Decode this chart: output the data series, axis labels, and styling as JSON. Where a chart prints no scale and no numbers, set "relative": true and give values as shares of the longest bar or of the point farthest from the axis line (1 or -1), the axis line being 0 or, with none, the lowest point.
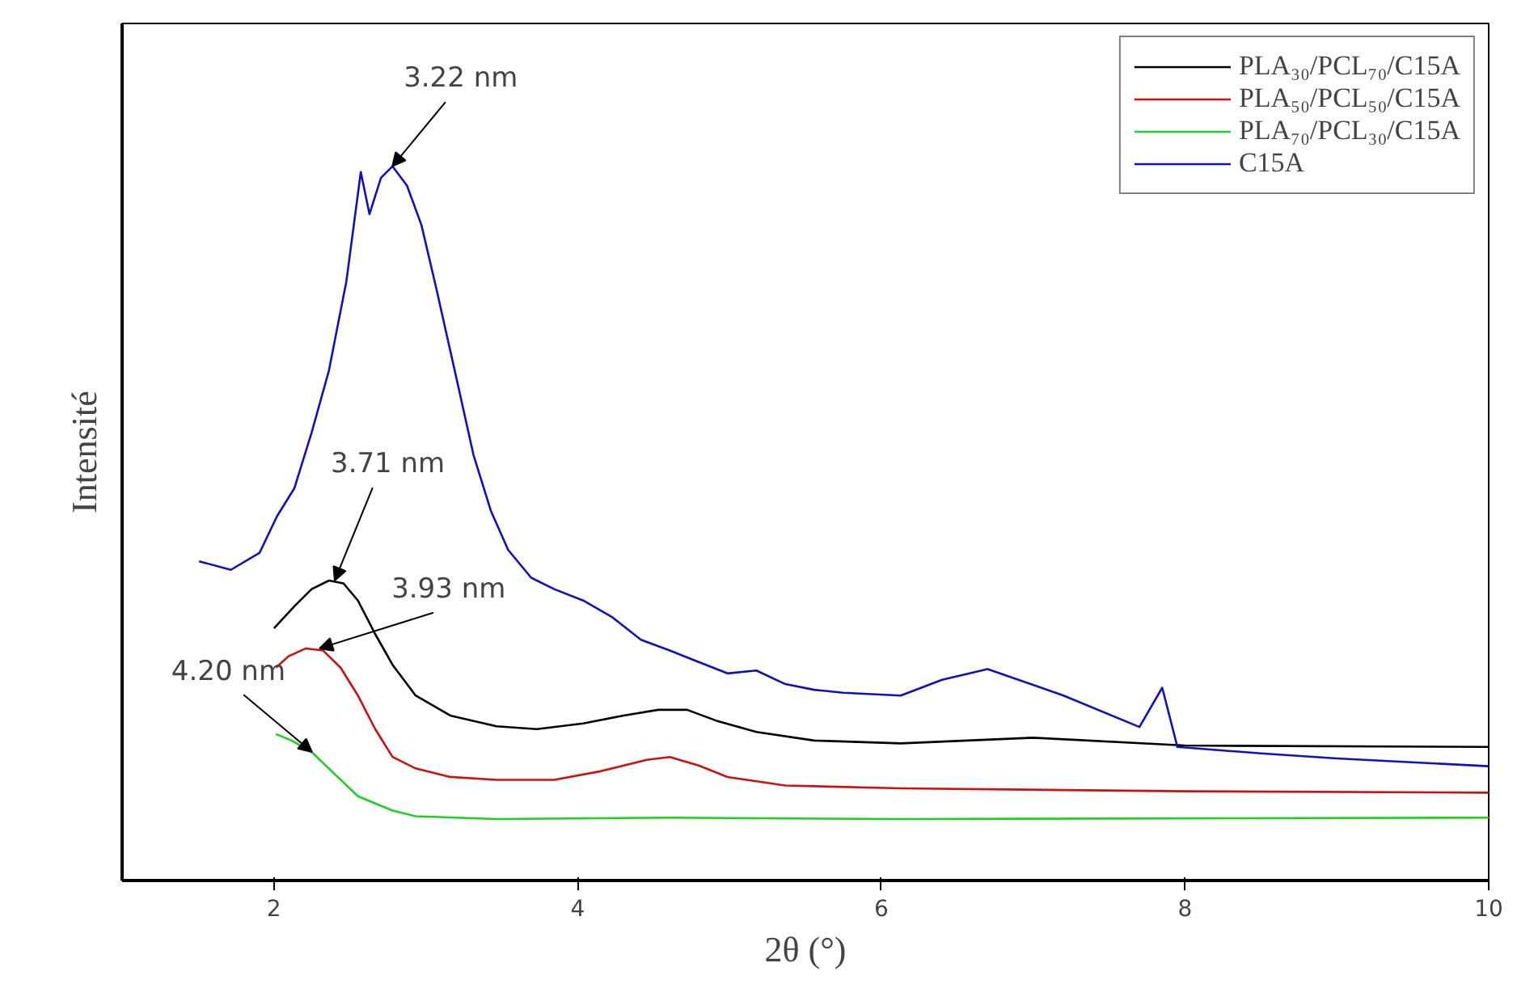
{
  "chart_data": {
    "type": "line",
    "relative": true,
    "xlabel": "2θ (°)",
    "ylabel": "Intensité",
    "xlim": [
      1,
      10
    ],
    "xticks": [
      2,
      4,
      6,
      8,
      10
    ],
    "legend": "top right",
    "grid": false,
    "marker": "none",
    "line_style": "solid",
    "series": [
      {
        "name": "PLA₃₀/PCL₇₀/C15A",
        "color": "#000000",
        "x": [
          2.0,
          2.134,
          2.248,
          2.362,
          2.458,
          2.553,
          2.667,
          2.781,
          2.933,
          3.161,
          3.466,
          3.732,
          4.036,
          4.302,
          4.531,
          4.721,
          4.911,
          5.177,
          5.558,
          6.128,
          7.0,
          8.0,
          10.0
        ],
        "values": [
          0.353,
          0.384,
          0.408,
          0.42,
          0.416,
          0.392,
          0.345,
          0.302,
          0.259,
          0.231,
          0.216,
          0.212,
          0.22,
          0.231,
          0.239,
          0.239,
          0.224,
          0.208,
          0.196,
          0.192,
          0.2,
          0.189,
          0.187
        ]
      },
      {
        "name": "PLA₅₀/PCL₅₀/C15A",
        "color": "#d01010",
        "x": [
          2.013,
          2.096,
          2.21,
          2.324,
          2.439,
          2.553,
          2.667,
          2.781,
          2.933,
          3.161,
          3.466,
          3.846,
          4.151,
          4.455,
          4.607,
          4.797,
          4.987,
          5.368,
          6.128,
          8.0,
          10.0
        ],
        "values": [
          0.298,
          0.314,
          0.325,
          0.322,
          0.298,
          0.259,
          0.212,
          0.173,
          0.157,
          0.145,
          0.141,
          0.141,
          0.153,
          0.169,
          0.173,
          0.161,
          0.145,
          0.133,
          0.129,
          0.125,
          0.123
        ]
      },
      {
        "name": "PLA₇₀/PCL₃₀/C15A",
        "color": "#20d020",
        "x": [
          2.013,
          2.116,
          2.248,
          2.4,
          2.553,
          2.781,
          2.933,
          3.466,
          4.607,
          6.128,
          10.0
        ],
        "values": [
          0.205,
          0.196,
          0.18,
          0.149,
          0.118,
          0.098,
          0.09,
          0.086,
          0.088,
          0.086,
          0.088
        ]
      },
      {
        "name": "C15A",
        "color": "#1010c0",
        "x": [
          1.507,
          1.716,
          1.906,
          2.02,
          2.134,
          2.248,
          2.362,
          2.477,
          2.572,
          2.629,
          2.705,
          2.781,
          2.876,
          2.971,
          3.066,
          3.199,
          3.314,
          3.428,
          3.542,
          3.694,
          3.846,
          4.037,
          4.226,
          4.417,
          4.607,
          4.797,
          4.987,
          5.177,
          5.368,
          5.558,
          5.748,
          6.128,
          6.4,
          6.7,
          7.2,
          7.7,
          7.85,
          7.95,
          8.5,
          9.0,
          10.0
        ],
        "values": [
          0.447,
          0.435,
          0.459,
          0.51,
          0.549,
          0.627,
          0.714,
          0.839,
          0.992,
          0.933,
          0.984,
          1.0,
          0.973,
          0.918,
          0.832,
          0.706,
          0.596,
          0.518,
          0.463,
          0.424,
          0.408,
          0.392,
          0.369,
          0.337,
          0.322,
          0.306,
          0.29,
          0.294,
          0.275,
          0.267,
          0.263,
          0.259,
          0.281,
          0.296,
          0.259,
          0.215,
          0.27,
          0.187,
          0.178,
          0.171,
          0.16
        ]
      }
    ],
    "annotations": [
      {
        "text": "3.22 nm",
        "x": 2.78,
        "y": 1.0
      },
      {
        "text": "3.71 nm",
        "x": 2.4,
        "y": 0.42
      },
      {
        "text": "3.93 nm",
        "x": 2.3,
        "y": 0.325
      },
      {
        "text": "4.20 nm",
        "x": 2.25,
        "y": 0.18
      }
    ]
  }
}
